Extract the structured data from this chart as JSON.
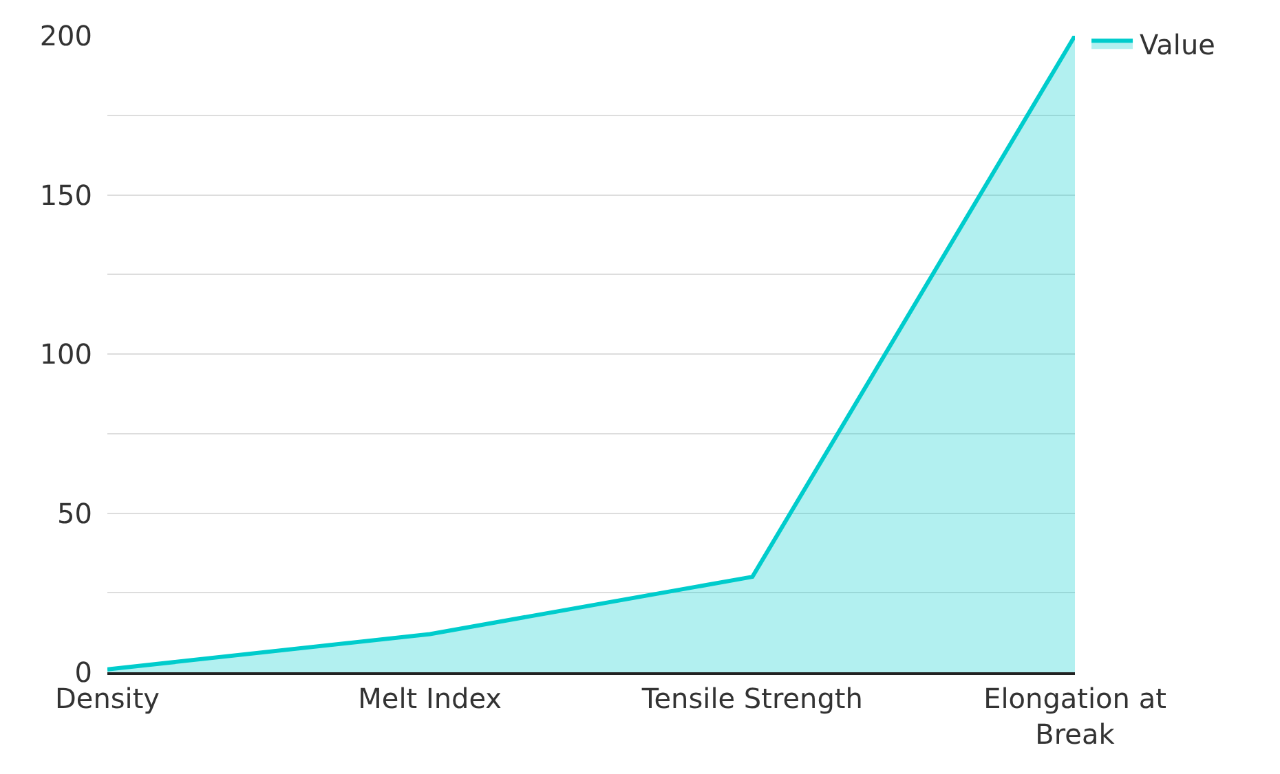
{
  "chart_data": {
    "type": "area",
    "categories": [
      "Density",
      "Melt Index",
      "Tensile Strength",
      "Elongation at Break"
    ],
    "series": [
      {
        "name": "Value",
        "color": "#00cccc",
        "values": [
          0.9,
          12,
          30,
          200
        ]
      }
    ],
    "ylim": [
      0,
      200
    ],
    "yticks": [
      0,
      {
        "value": 25,
        "label": null
      },
      50,
      {
        "value": 75,
        "label": null
      },
      100,
      {
        "value": 125,
        "label": null
      },
      150,
      {
        "value": 175,
        "label": null
      },
      200
    ],
    "grid": "y",
    "legend": "top right"
  }
}
